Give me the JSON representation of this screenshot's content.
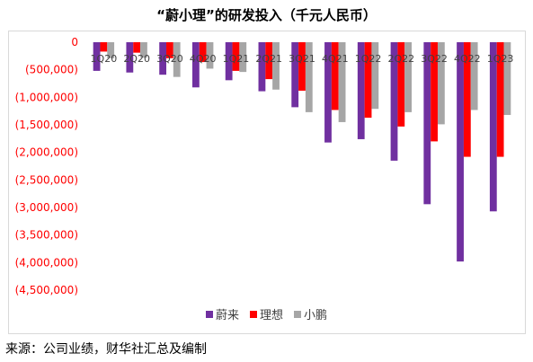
{
  "title": "“蔚小理”的研发投入（千元人民币）",
  "source": "来源：公司业绩，财华社汇总及编制",
  "chart_data": {
    "type": "bar",
    "categories": [
      "1Q20",
      "2Q20",
      "3Q20",
      "4Q20",
      "1Q21",
      "2Q21",
      "3Q21",
      "4Q21",
      "1Q22",
      "2Q22",
      "3Q22",
      "4Q22",
      "1Q23"
    ],
    "series": [
      {
        "name": "蔚来",
        "color": "#7030a0",
        "values": [
          -520000,
          -550000,
          -590000,
          -820000,
          -690000,
          -890000,
          -1180000,
          -1820000,
          -1760000,
          -2150000,
          -2940000,
          -3980000,
          -3070000
        ]
      },
      {
        "name": "理想",
        "color": "#ff0000",
        "values": [
          -170000,
          -190000,
          -290000,
          -360000,
          -520000,
          -670000,
          -880000,
          -1230000,
          -1370000,
          -1530000,
          -1800000,
          -2080000,
          -2080000
        ]
      },
      {
        "name": "小鹏",
        "color": "#a6a6a6",
        "values": [
          -290000,
          -280000,
          -630000,
          -480000,
          -540000,
          -860000,
          -1270000,
          -1450000,
          -1210000,
          -1270000,
          -1490000,
          -1230000,
          -1320000
        ]
      }
    ],
    "ylim": [
      -4500000,
      0
    ],
    "yticks": [
      "0",
      "(500,000)",
      "(1,000,000)",
      "(1,500,000)",
      "(2,000,000)",
      "(2,500,000)",
      "(3,000,000)",
      "(3,500,000)",
      "(4,000,000)",
      "(4,500,000)"
    ],
    "grid": false,
    "legend": "bottom"
  }
}
